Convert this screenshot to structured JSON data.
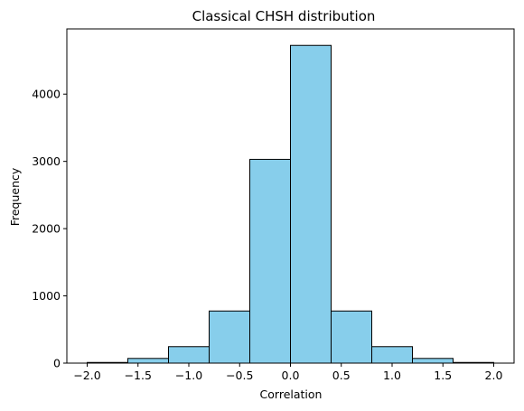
{
  "chart_data": {
    "type": "bar",
    "title": "Classical CHSH distribution",
    "xlabel": "Correlation",
    "ylabel": "Frequency",
    "bin_edges": [
      -2.0,
      -1.6,
      -1.2,
      -0.8,
      -0.4,
      0.0,
      0.4,
      0.8,
      1.2,
      1.6,
      2.0
    ],
    "values": [
      10,
      70,
      245,
      775,
      3030,
      4725,
      775,
      245,
      70,
      10
    ],
    "xlim": [
      -2.2,
      2.2
    ],
    "ylim": [
      0,
      4970
    ],
    "xticks": [
      -2.0,
      -1.5,
      -1.0,
      -0.5,
      0.0,
      0.5,
      1.0,
      1.5,
      2.0
    ],
    "xtick_labels": [
      "−2.0",
      "−1.5",
      "−1.0",
      "−0.5",
      "0.0",
      "0.5",
      "1.0",
      "1.5",
      "2.0"
    ],
    "yticks": [
      0,
      1000,
      2000,
      3000,
      4000
    ],
    "ytick_labels": [
      "0",
      "1000",
      "2000",
      "3000",
      "4000"
    ],
    "grid": false,
    "bar_color": "#87ceeb",
    "edge_color": "#000000"
  }
}
